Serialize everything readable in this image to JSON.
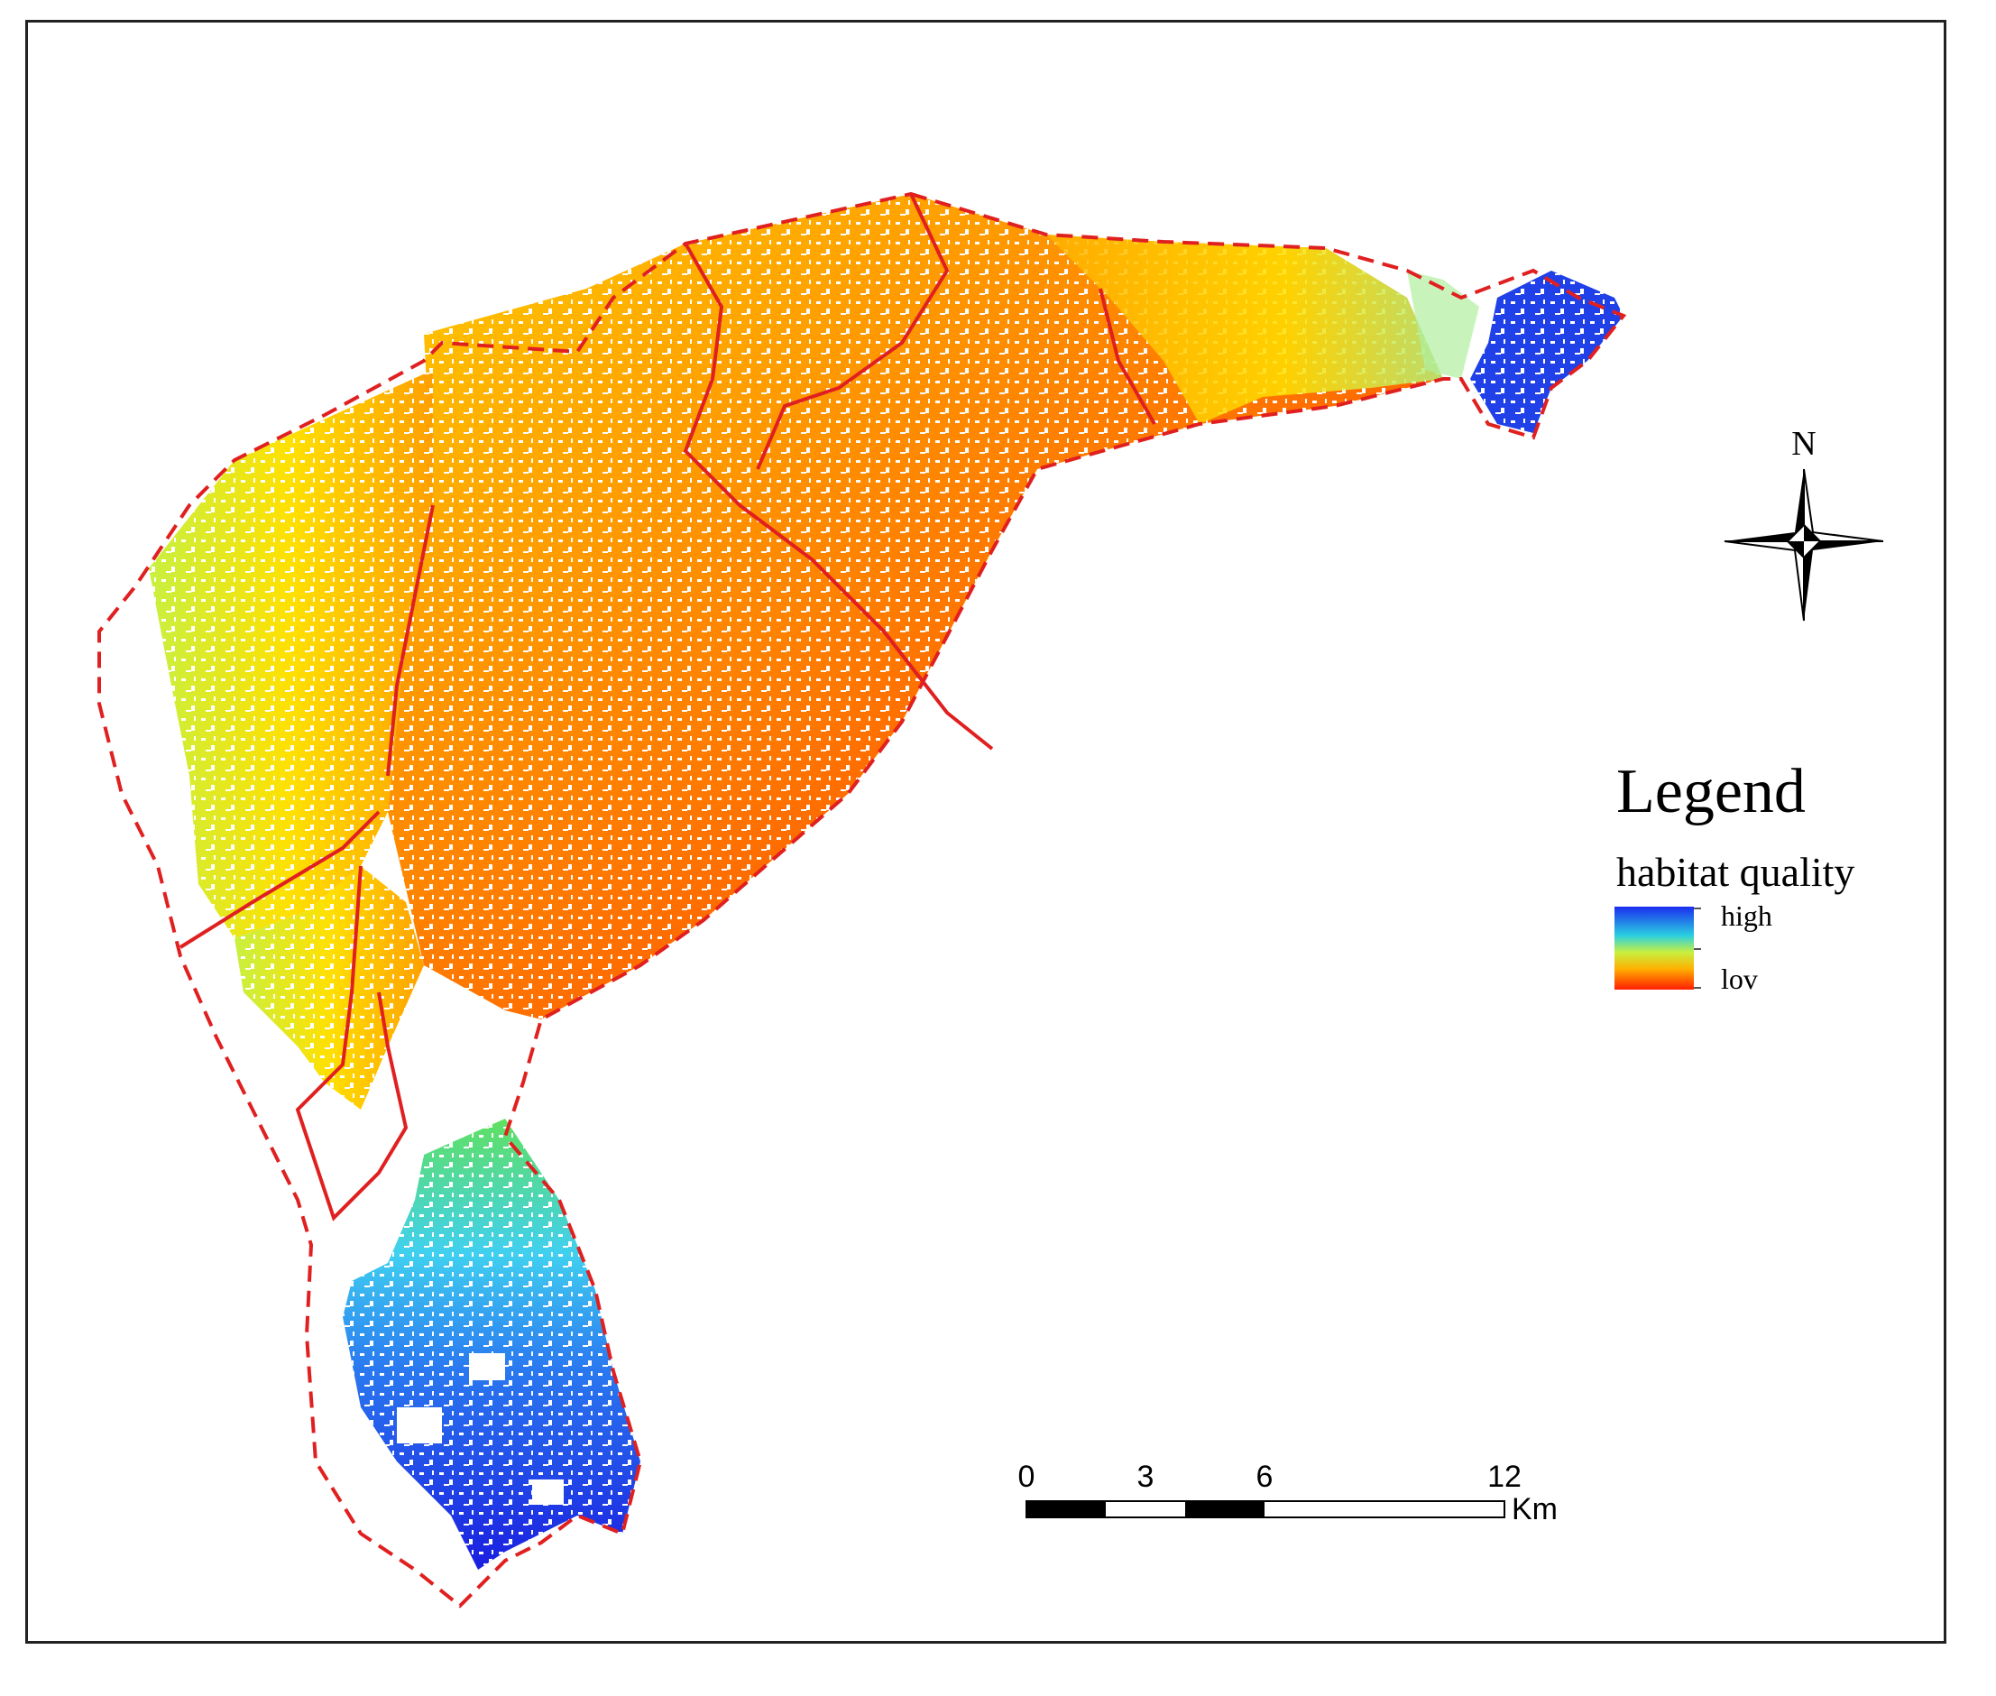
{
  "map": {
    "compass": {
      "north_label": "N"
    },
    "legend": {
      "title": "Legend",
      "subtitle": "habitat quality",
      "high_label": "high",
      "low_label": "lov",
      "colors": {
        "high": "#1a2cf0",
        "mid_high": "#2ad0e0",
        "mid": "#c8f040",
        "mid_low": "#ffb000",
        "low": "#ff1e00"
      }
    },
    "scale_bar": {
      "labels": [
        "0",
        "3",
        "6",
        "12"
      ],
      "unit": "Km"
    },
    "boundary_color": "#e02020"
  }
}
